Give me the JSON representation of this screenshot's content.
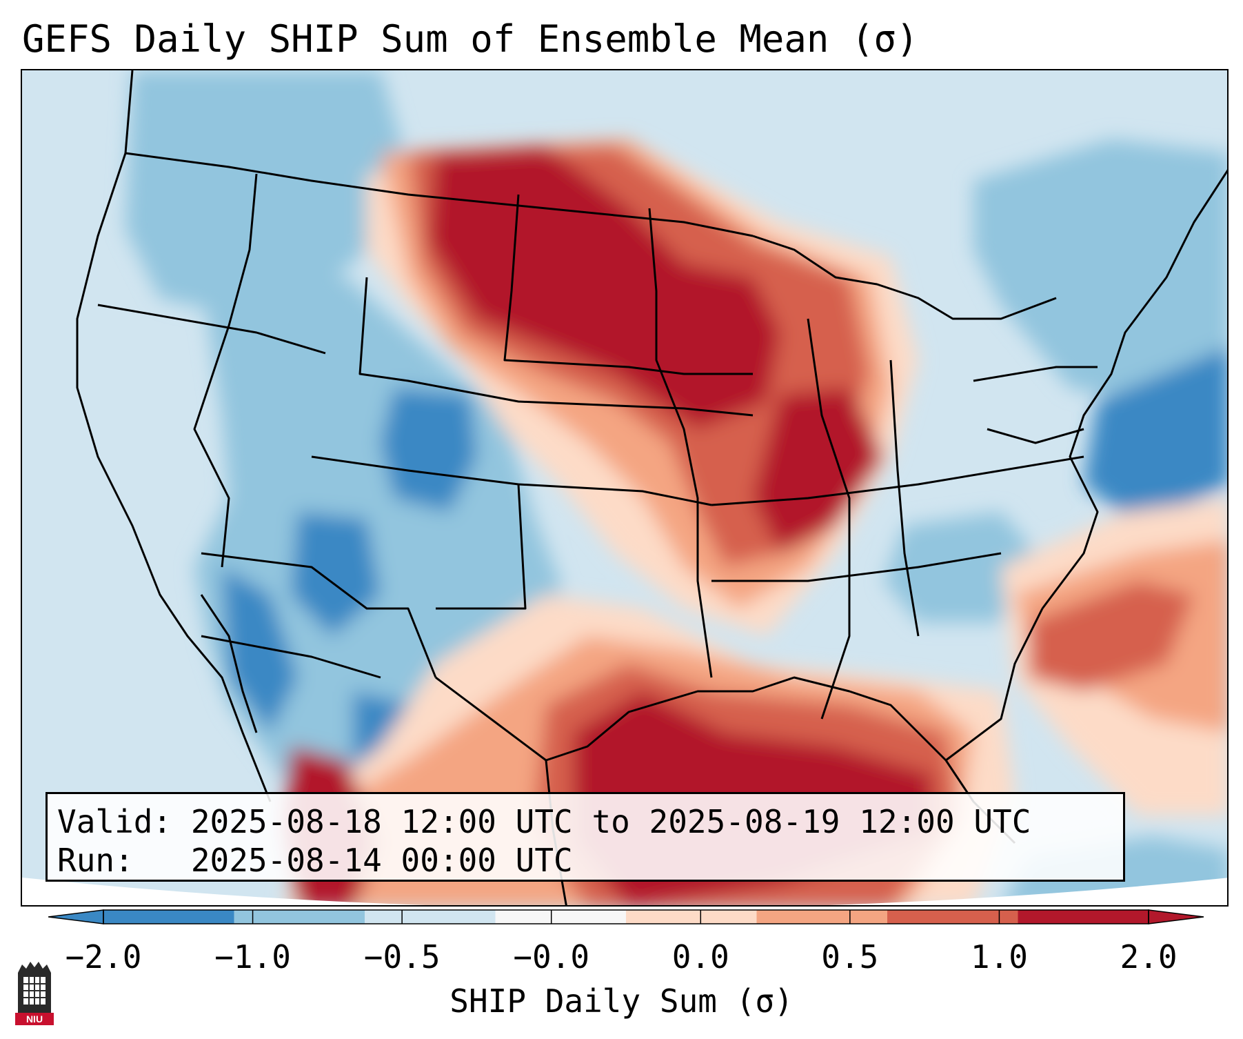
{
  "title": "GEFS Daily SHIP Sum of Ensemble Mean (σ)",
  "info_box": {
    "valid": "Valid: 2025-08-18 12:00 UTC to 2025-08-19 12:00 UTC",
    "run": "Run:   2025-08-14 00:00 UTC"
  },
  "colorbar": {
    "label": "SHIP Daily Sum (σ)",
    "ticks": [
      "−2.0",
      "−1.0",
      "−0.5",
      "−0.0",
      "0.0",
      "0.5",
      "1.0",
      "2.0"
    ],
    "colors": [
      "#3a88c4",
      "#92c5de",
      "#d1e5f0",
      "#f7f7f7",
      "#fddbc7",
      "#f4a582",
      "#d6604d",
      "#b2182b"
    ],
    "extend": "both"
  },
  "logo": {
    "text": "NIU",
    "icon": "niu-tower-logo-icon"
  },
  "map": {
    "projection": "Lambert conformal CONUS",
    "field": "SHIP daily sum",
    "colors": {
      "strong_neg": "#3a88c4",
      "neg": "#92c5de",
      "weak_neg": "#d1e5f0",
      "weak_pos": "#fddbc7",
      "pos": "#f4a582",
      "strong_pos": "#d6604d",
      "max_pos": "#b2182b"
    }
  }
}
